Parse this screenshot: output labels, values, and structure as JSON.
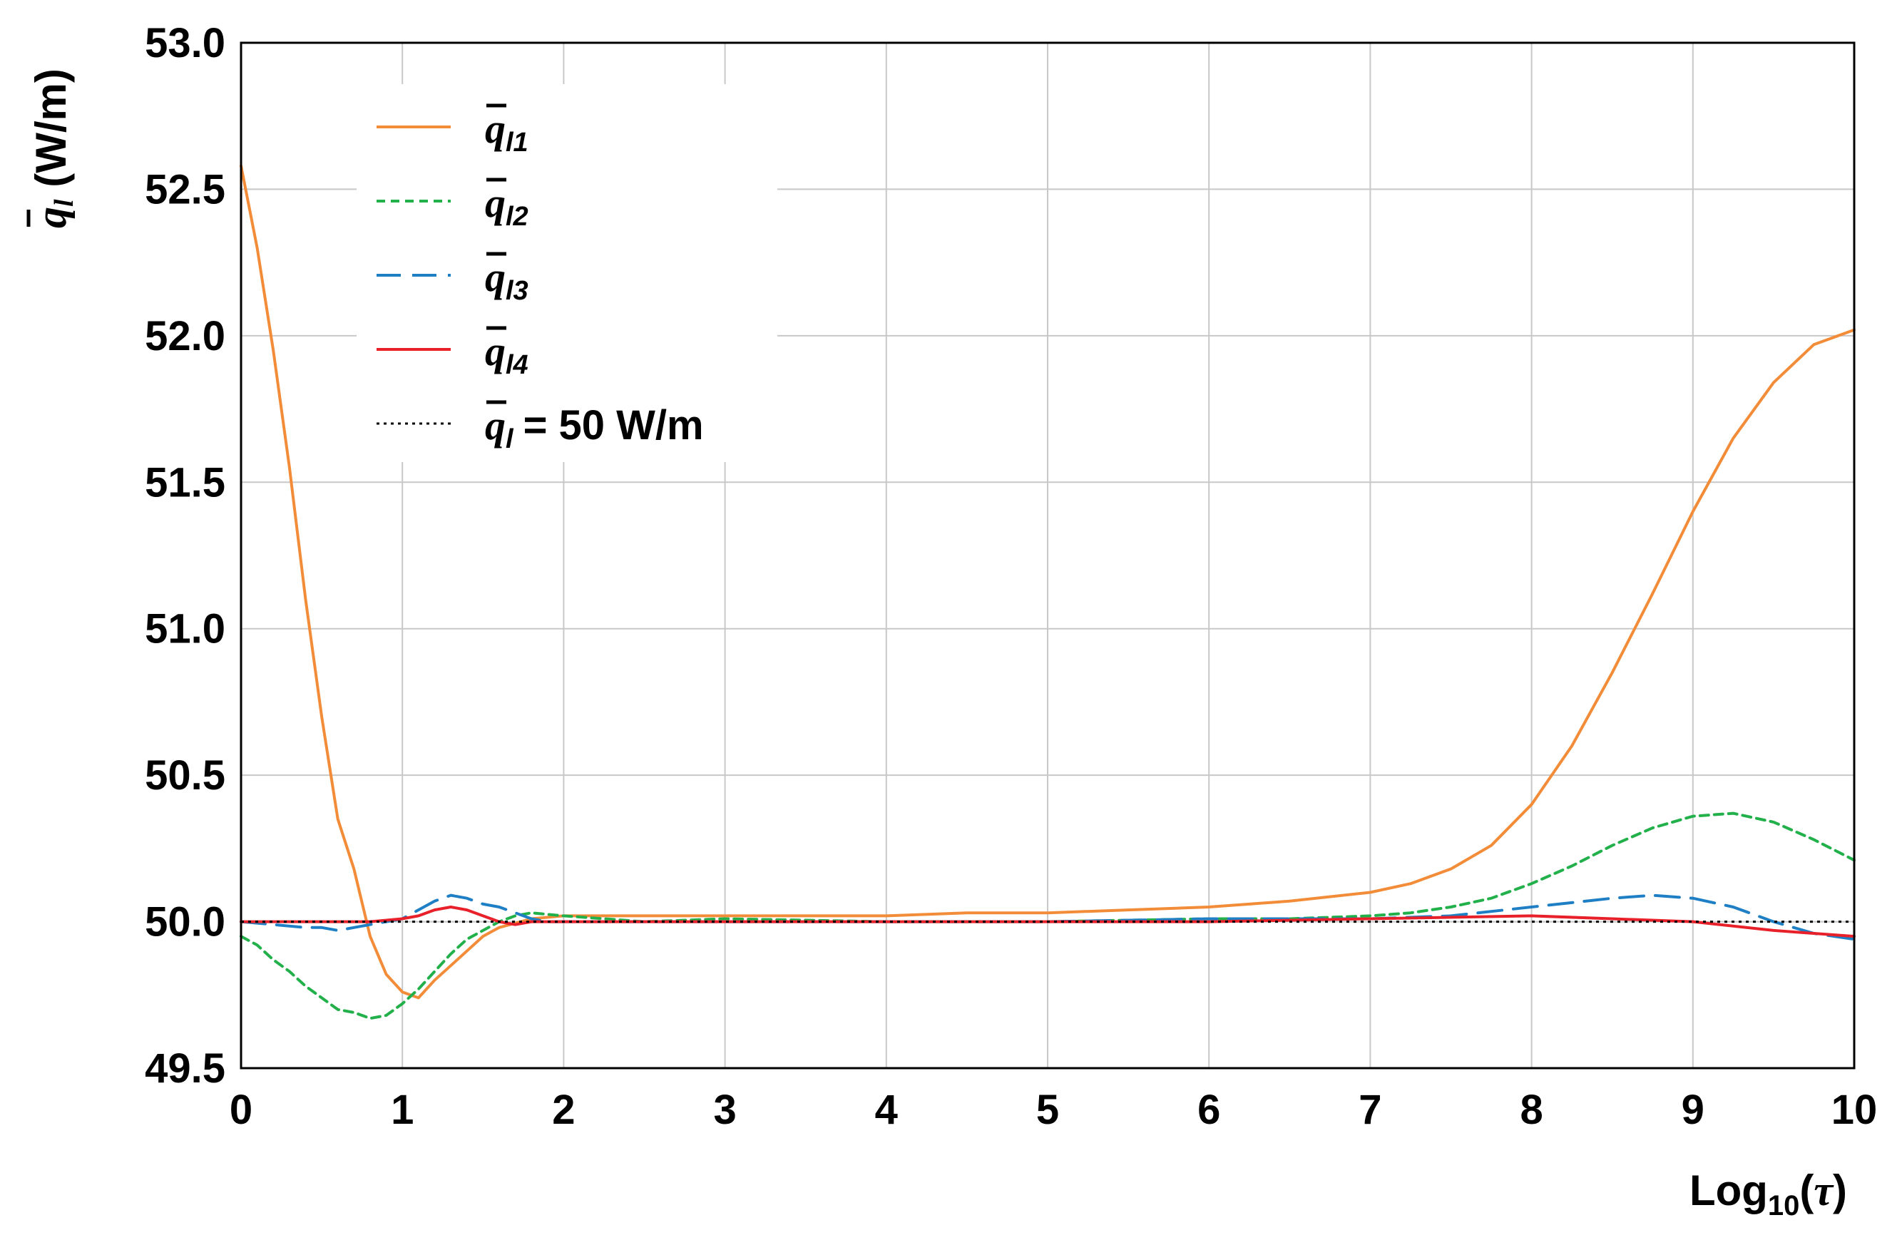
{
  "chart_data": {
    "type": "line",
    "title": "",
    "xlabel": "Log10(τ)",
    "ylabel": "q̄l (W/m)",
    "xlim": [
      0,
      10
    ],
    "ylim": [
      49.5,
      53.0
    ],
    "x_ticks": [
      "0",
      "1",
      "2",
      "3",
      "4",
      "5",
      "6",
      "7",
      "8",
      "9",
      "10"
    ],
    "y_ticks": [
      "49.5",
      "50.0",
      "50.5",
      "51.0",
      "51.5",
      "52.0",
      "52.5",
      "53.0"
    ],
    "grid": true,
    "legend_position": "top-left",
    "series": [
      {
        "name": "q̄l1",
        "legend_main": "q̄",
        "legend_sub": "l1",
        "color": "#F28C38",
        "dash": "solid",
        "x": [
          0,
          0.1,
          0.2,
          0.3,
          0.4,
          0.5,
          0.6,
          0.7,
          0.8,
          0.9,
          1.0,
          1.1,
          1.2,
          1.3,
          1.4,
          1.5,
          1.6,
          1.8,
          2,
          2.5,
          3,
          3.5,
          4,
          4.5,
          5,
          5.5,
          6,
          6.5,
          7,
          7.25,
          7.5,
          7.75,
          8,
          8.25,
          8.5,
          8.75,
          9,
          9.25,
          9.5,
          9.75,
          10
        ],
        "y": [
          52.58,
          52.3,
          51.95,
          51.55,
          51.1,
          50.7,
          50.35,
          50.18,
          49.95,
          49.82,
          49.76,
          49.74,
          49.8,
          49.85,
          49.9,
          49.95,
          49.98,
          50.01,
          50.02,
          50.02,
          50.02,
          50.02,
          50.02,
          50.03,
          50.03,
          50.04,
          50.05,
          50.07,
          50.1,
          50.13,
          50.18,
          50.26,
          50.4,
          50.6,
          50.85,
          51.12,
          51.4,
          51.65,
          51.84,
          51.97,
          52.02
        ]
      },
      {
        "name": "q̄l2",
        "legend_main": "q̄",
        "legend_sub": "l2",
        "color": "#22B04B",
        "dash": "short-dash",
        "x": [
          0,
          0.1,
          0.2,
          0.3,
          0.4,
          0.5,
          0.6,
          0.7,
          0.8,
          0.9,
          1.0,
          1.1,
          1.2,
          1.3,
          1.4,
          1.5,
          1.6,
          1.7,
          1.8,
          2,
          2.5,
          3,
          4,
          5,
          6,
          6.5,
          7,
          7.25,
          7.5,
          7.75,
          8,
          8.25,
          8.5,
          8.75,
          9,
          9.25,
          9.5,
          9.75,
          10
        ],
        "y": [
          49.95,
          49.92,
          49.87,
          49.83,
          49.78,
          49.74,
          49.7,
          49.69,
          49.67,
          49.68,
          49.72,
          49.77,
          49.83,
          49.89,
          49.94,
          49.97,
          50.0,
          50.02,
          50.03,
          50.02,
          50.0,
          50.01,
          50.0,
          50.0,
          50.01,
          50.01,
          50.02,
          50.03,
          50.05,
          50.08,
          50.13,
          50.19,
          50.26,
          50.32,
          50.36,
          50.37,
          50.34,
          50.28,
          50.21
        ]
      },
      {
        "name": "q̄l3",
        "legend_main": "q̄",
        "legend_sub": "l3",
        "color": "#1F7FC4",
        "dash": "long-dash",
        "x": [
          0,
          0.2,
          0.4,
          0.5,
          0.6,
          0.7,
          0.8,
          0.9,
          1.0,
          1.1,
          1.2,
          1.3,
          1.4,
          1.5,
          1.6,
          1.7,
          1.8,
          1.9,
          2,
          2.5,
          3,
          4,
          5,
          6,
          7,
          7.5,
          8,
          8.5,
          8.75,
          9,
          9.25,
          9.5,
          9.75,
          10
        ],
        "y": [
          50.0,
          49.99,
          49.98,
          49.98,
          49.97,
          49.98,
          49.99,
          50.0,
          50.01,
          50.04,
          50.07,
          50.09,
          50.08,
          50.06,
          50.05,
          50.03,
          50.01,
          50.0,
          50.0,
          50.0,
          50.0,
          50.0,
          50.0,
          50.01,
          50.01,
          50.02,
          50.05,
          50.08,
          50.09,
          50.08,
          50.05,
          50.0,
          49.96,
          49.94
        ]
      },
      {
        "name": "q̄l4",
        "legend_main": "q̄",
        "legend_sub": "l4",
        "color": "#E8202A",
        "dash": "solid",
        "x": [
          0,
          0.5,
          0.8,
          1.0,
          1.1,
          1.2,
          1.3,
          1.4,
          1.5,
          1.6,
          1.7,
          1.8,
          2.0,
          2.5,
          3,
          4,
          5,
          6,
          7,
          8,
          8.5,
          9,
          9.5,
          10
        ],
        "y": [
          50.0,
          50.0,
          50.0,
          50.01,
          50.02,
          50.04,
          50.05,
          50.04,
          50.02,
          50.0,
          49.99,
          50.0,
          50.0,
          50.0,
          50.0,
          50.0,
          50.0,
          50.0,
          50.01,
          50.02,
          50.01,
          50.0,
          49.97,
          49.95
        ]
      },
      {
        "name": "q̄l = 50 W/m",
        "legend_main": "q̄",
        "legend_sub": "l",
        "legend_suffix": "= 50 W/m",
        "color": "#000000",
        "dash": "dotted",
        "x": [
          0,
          10
        ],
        "y": [
          50.0,
          50.0
        ]
      }
    ]
  }
}
